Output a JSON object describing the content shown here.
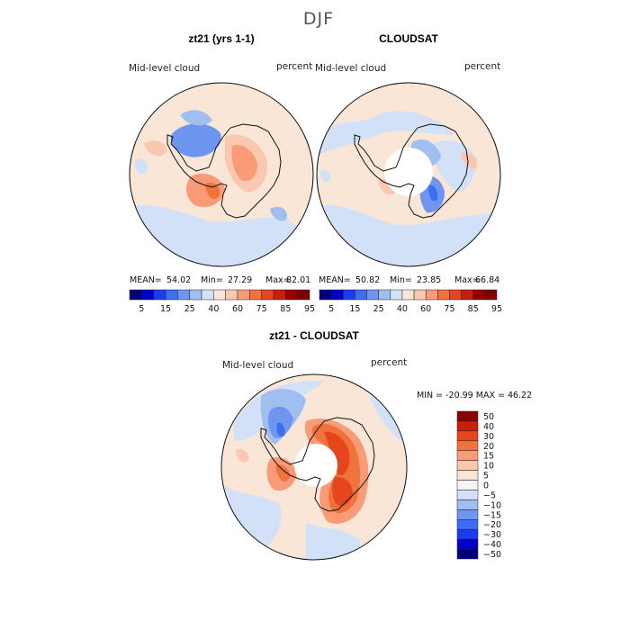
{
  "figure": {
    "season": "DJF",
    "panels": [
      {
        "title": "zt21 (yrs 1-1)",
        "variable": "Mid-level cloud",
        "units": "percent",
        "mean_label": "MEAN=",
        "mean": "54.02",
        "min_label": "Min=",
        "min": "27.29",
        "max_label": "Max=",
        "max": "82.01"
      },
      {
        "title": "CLOUDSAT",
        "variable": "Mid-level cloud",
        "units": "percent",
        "mean_label": "MEAN=",
        "mean": "50.82",
        "min_label": "Min=",
        "min": "23.85",
        "max_label": "Max=",
        "max": "66.84"
      }
    ],
    "diff_panel": {
      "title": "zt21 - CLOUDSAT",
      "variable": "Mid-level cloud",
      "units": "percent",
      "minmax_text": "MIN = -20.99 MAX =  46.22"
    }
  },
  "chart_data": [
    {
      "type": "heatmap",
      "title": "zt21 (yrs 1-1)",
      "subtitle": "Mid-level cloud",
      "units": "percent",
      "projection": "south polar stereographic",
      "stats": {
        "mean": 54.02,
        "min": 27.29,
        "max": 82.01
      },
      "colorbar": {
        "tick_labels": [
          "5",
          "15",
          "25",
          "40",
          "60",
          "75",
          "85",
          "95"
        ],
        "colors": [
          "#00007f",
          "#0000c8",
          "#1a3cf0",
          "#3c6ef0",
          "#6e96f0",
          "#a0bef0",
          "#d2e1f8",
          "#fae6d7",
          "#fac8af",
          "#fa9b78",
          "#f0733c",
          "#e6461e",
          "#c81e0a",
          "#960000",
          "#7f0000"
        ]
      }
    },
    {
      "type": "heatmap",
      "title": "CLOUDSAT",
      "subtitle": "Mid-level cloud",
      "units": "percent",
      "projection": "south polar stereographic",
      "stats": {
        "mean": 50.82,
        "min": 23.85,
        "max": 66.84
      },
      "colorbar": {
        "tick_labels": [
          "5",
          "15",
          "25",
          "40",
          "60",
          "75",
          "85",
          "95"
        ],
        "colors": [
          "#00007f",
          "#0000c8",
          "#1a3cf0",
          "#3c6ef0",
          "#6e96f0",
          "#a0bef0",
          "#d2e1f8",
          "#fae6d7",
          "#fac8af",
          "#fa9b78",
          "#f0733c",
          "#e6461e",
          "#c81e0a",
          "#960000",
          "#7f0000"
        ]
      }
    },
    {
      "type": "heatmap",
      "title": "zt21 - CLOUDSAT",
      "subtitle": "Mid-level cloud",
      "units": "percent",
      "projection": "south polar stereographic",
      "stats": {
        "min": -20.99,
        "max": 46.22
      },
      "colorbar": {
        "orientation": "vertical",
        "tick_labels": [
          "50",
          "40",
          "30",
          "20",
          "15",
          "10",
          "5",
          "0",
          "-5",
          "-10",
          "-15",
          "-20",
          "-30",
          "-40",
          "-50"
        ],
        "colors": [
          "#8b0000",
          "#c81e0a",
          "#e6461e",
          "#f0733c",
          "#fa9b78",
          "#fac8af",
          "#fae6d7",
          "#f5f5f5",
          "#d2e1f8",
          "#a0bef0",
          "#6e96f0",
          "#3c6ef0",
          "#1a3cf0",
          "#0000c8",
          "#00007f"
        ]
      }
    }
  ]
}
